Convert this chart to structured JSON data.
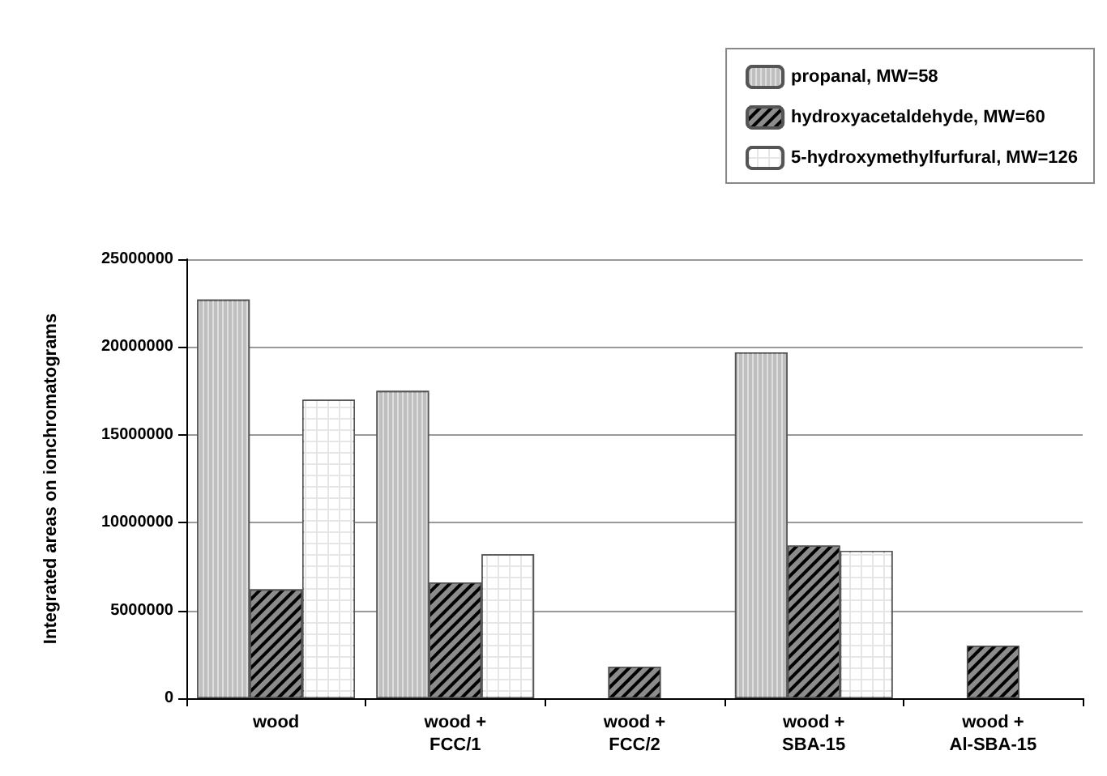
{
  "chart_data": {
    "type": "bar",
    "ylabel": "Integrated areas on ionchromatograms",
    "categories": [
      "wood",
      "wood +\nFCC/1",
      "wood +\nFCC/2",
      "wood +\nSBA-15",
      "wood +\nAl-SBA-15"
    ],
    "series": [
      {
        "name": "propanal, MW=58",
        "color": "#bfbfbf",
        "values": [
          22700000,
          17500000,
          null,
          19700000,
          null
        ]
      },
      {
        "name": "hydroxyacetaldehyde, MW=60",
        "color": "#8c8c8c",
        "values": [
          6200000,
          6600000,
          1800000,
          8700000,
          3000000
        ]
      },
      {
        "name": "5-hydroxymethylfurfural, MW=126",
        "color": "#e6e6e6",
        "values": [
          17000000,
          8200000,
          null,
          8400000,
          null
        ]
      }
    ],
    "ylim": [
      0,
      25000000
    ],
    "yticks": [
      0,
      5000000,
      10000000,
      15000000,
      20000000,
      25000000
    ],
    "grid": "y",
    "legend": "top right"
  }
}
